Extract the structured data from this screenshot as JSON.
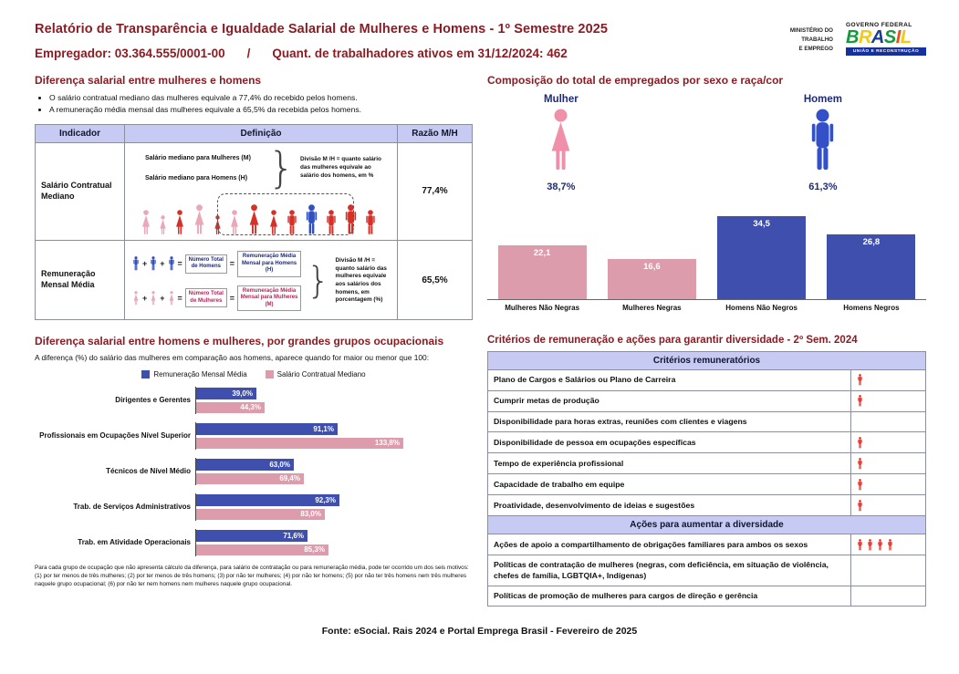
{
  "page": {
    "footer": "Fonte: eSocial. Rais 2024 e Portal Emprega Brasil - Fevereiro de 2025"
  },
  "header": {
    "title": "Relatório de Transparência e Igualdade Salarial de Mulheres e Homens - 1º Semestre 2025",
    "employer": "Empregador: 03.364.555/0001-00",
    "separator": "/",
    "workers": "Quant. de trabalhadores ativos em 31/12/2024: 462",
    "ministry_lines": [
      "MINISTÉRIO DO",
      "TRABALHO",
      "E EMPREGO"
    ],
    "gov_logo": {
      "top": "GOVERNO FEDERAL",
      "brand_letters": [
        {
          "ch": "B",
          "color": "#139b3b"
        },
        {
          "ch": "R",
          "color": "#f2c916"
        },
        {
          "ch": "A",
          "color": "#1b3c8f"
        },
        {
          "ch": "S",
          "color": "#139b3b"
        },
        {
          "ch": "I",
          "color": "#e94f1d"
        },
        {
          "ch": "L",
          "color": "#f2c916"
        }
      ],
      "bottom": "UNIÃO E RECONSTRUÇÃO",
      "bar_color": "#16309c"
    }
  },
  "salary_gap": {
    "title": "Diferença salarial entre mulheres e homens",
    "bullets": [
      "O salário contratual mediano das mulheres equivale a 77,4% do recebido pelos homens.",
      "A remuneração média mensal das mulheres equivale a 65,5% da recebida pelos homens."
    ],
    "table": {
      "headers": [
        "Indicador",
        "Definição",
        "Razão M/H"
      ],
      "rows": [
        {
          "indicator": "Salário Contratual Mediano",
          "ratio": "77,4%",
          "label_women": "Salário mediano para Mulheres (M)",
          "label_men": "Salário mediano para Homens (H)",
          "note": "Divisão M /H = quanto salário das mulheres equivale ao salário dos homens, em %",
          "figure_icons": [
            "female-pink",
            "female-pink-sm",
            "female-red",
            "female-pink-lg",
            "female-red-sm",
            "female-pink",
            "female-red-lg",
            "female-red",
            "male-red",
            "male-blue-lg",
            "male-red",
            "male-red-lg",
            "male-red"
          ]
        },
        {
          "indicator": "Remuneração Mensal Média",
          "ratio": "65,5%",
          "men_count_label": "Número Total de Homens",
          "men_avg_label": "Remuneração Média Mensal para Homens (H)",
          "women_count_label": "Número Total de Mulheres",
          "women_avg_label": "Remuneração Média Mensal para Mulheres (M)",
          "note": "Divisão M /H = quanto salário das mulheres equivale aos salários dos homens, em porcentagem (%)"
        }
      ]
    }
  },
  "composition": {
    "title": "Composição do total de empregados por sexo e raça/cor",
    "female": {
      "label": "Mulher",
      "pct": "38,7%"
    },
    "male": {
      "label": "Homem",
      "pct": "61,3%"
    }
  },
  "occupational": {
    "title": "Diferença salarial entre homens e mulheres, por grandes grupos ocupacionais",
    "subtitle": "A diferença (%) do salário das mulheres em comparação aos homens, aparece quando for maior ou menor que 100:",
    "footnote": "Para cada grupo de ocupação que não apresenta cálculo da diferença, para salário de contratação ou para remuneração média, pode ter ocorrido um dos seis motivos: (1) por ter menos de três mulheres; (2) por ter menos de três homens; (3) por não ter mulheres; (4) por não ter homens; (5) por não ter três homens nem três mulheres naquele grupo ocupacional; (6) por não ter nem homens nem mulheres naquele grupo ocupacional."
  },
  "criteria": {
    "title": "Critérios de remuneração e ações para garantir diversidade - 2º Sem. 2024",
    "groups": [
      {
        "header": "Critérios remuneratórios",
        "rows": [
          {
            "text": "Plano de Cargos e Salários ou Plano de Carreira",
            "markers": 1
          },
          {
            "text": "Cumprir metas de produção",
            "markers": 1
          },
          {
            "text": "Disponibilidade para horas extras, reuniões com clientes e viagens",
            "markers": 0
          },
          {
            "text": "Disponibilidade de pessoa em ocupações específicas",
            "markers": 1
          },
          {
            "text": "Tempo de experiência profissional",
            "markers": 1
          },
          {
            "text": "Capacidade de trabalho em equipe",
            "markers": 1
          },
          {
            "text": "Proatividade, desenvolvimento de ideias e sugestões",
            "markers": 1
          }
        ]
      },
      {
        "header": "Ações para aumentar a diversidade",
        "rows": [
          {
            "text": "Ações de apoio a compartilhamento de obrigações familiares para ambos os sexos",
            "markers": 4
          },
          {
            "text": "Políticas de contratação de mulheres (negras, com deficiência, em situação de violência, chefes de família, LGBTQIA+, Indígenas)",
            "markers": 0
          },
          {
            "text": "Políticas de promoção de mulheres para cargos de direção e gerência",
            "markers": 0
          }
        ]
      }
    ]
  },
  "chart_data": [
    {
      "type": "bar",
      "title": "Composição do total de empregados por sexo e raça/cor",
      "categories": [
        "Mulheres Não Negras",
        "Mulheres Negras",
        "Homens Não Negros",
        "Homens Negros"
      ],
      "values": [
        22.1,
        16.6,
        34.5,
        26.8
      ],
      "value_labels": [
        "22,1",
        "16,6",
        "34,5",
        "26,8"
      ],
      "bar_colors": [
        "#dc9cab",
        "#dc9cab",
        "#3e4fae",
        "#3e4fae"
      ],
      "ylim": [
        0,
        40
      ],
      "grid": false,
      "summary": {
        "female_pct": 38.7,
        "male_pct": 61.3
      }
    },
    {
      "type": "bar-horizontal",
      "title": "Diferença salarial entre homens e mulheres, por grandes grupos ocupacionais",
      "categories": [
        "Dirigentes e Gerentes",
        "Profissionais em Ocupações Nível Superior",
        "Técnicos de Nível Médio",
        "Trab. de Serviços Administrativos",
        "Trab. em Atividade Operacionais"
      ],
      "series": [
        {
          "name": "Remuneração Mensal Média",
          "color": "#3e4fae",
          "values": [
            39.0,
            91.1,
            63.0,
            92.3,
            71.6
          ],
          "labels": [
            "39,0%",
            "91,1%",
            "63,0%",
            "92,3%",
            "71,6%"
          ]
        },
        {
          "name": "Salário Contratual Mediano",
          "color": "#dc9cab",
          "values": [
            44.3,
            133.8,
            69.4,
            83.0,
            85.3
          ],
          "labels": [
            "44,3%",
            "133,8%",
            "69,4%",
            "83,0%",
            "85,3%"
          ]
        }
      ],
      "xlim": [
        0,
        140
      ],
      "legend_position": "top",
      "grid": false
    }
  ],
  "colors": {
    "heading_red": "#8a1c24",
    "table_header_bg": "#c7caf2",
    "female_pink": "#ef8fa9",
    "male_blue": "#3350c8",
    "bar_pink": "#dc9cab",
    "bar_blue": "#3e4fae",
    "marker_red": "#e02b1f",
    "navy_text": "#1d2b7a"
  }
}
